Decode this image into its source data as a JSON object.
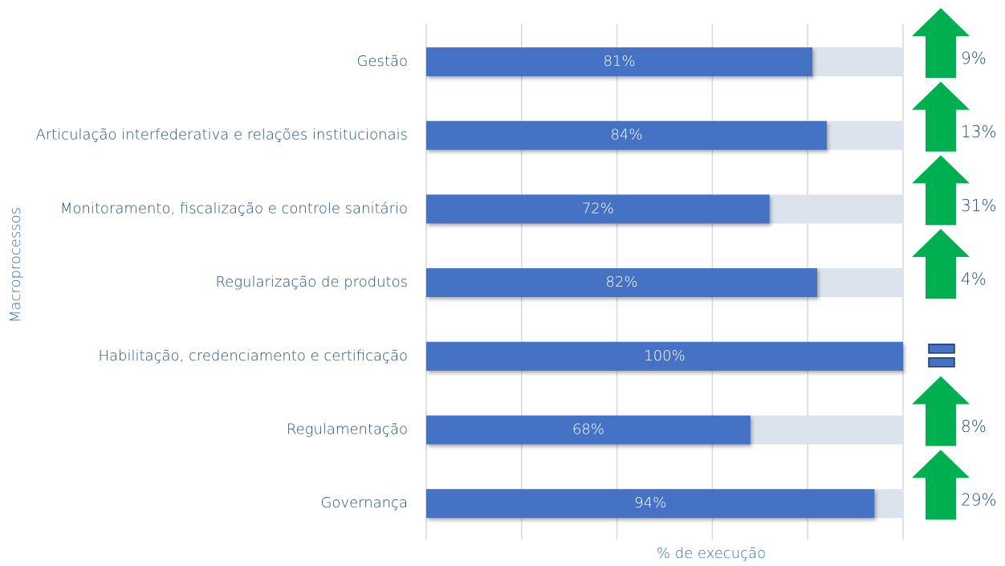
{
  "chart_data": {
    "type": "bar",
    "orientation": "horizontal",
    "y_label": "Macroprocessos",
    "x_label": "% de execução",
    "categories": [
      "Gestão",
      "Articulação interfederativa e relações institucionais",
      "Monitoramento, fiscalização e controle sanitário",
      "Regularização de produtos",
      "Habilitação, credenciamento e certificação",
      "Regulamentação",
      "Governança"
    ],
    "values": [
      81,
      84,
      72,
      82,
      100,
      68,
      94
    ],
    "value_labels": [
      "81%",
      "84%",
      "72%",
      "82%",
      "100%",
      "68%",
      "94%"
    ],
    "color": "#4472c4",
    "track_color": "#dde3ec",
    "changes": [
      9,
      13,
      31,
      4,
      null,
      8,
      29
    ],
    "change_labels": [
      "9%",
      "13%",
      "31%",
      "4%",
      null,
      "8%",
      "29%"
    ],
    "trend": [
      "up",
      "up",
      "up",
      "up",
      "equal",
      "up",
      "up"
    ],
    "arrow_color": "#00b050",
    "xlim": [
      0,
      100
    ],
    "xticks": [
      0,
      20,
      40,
      60,
      80,
      100
    ],
    "grid": true
  }
}
